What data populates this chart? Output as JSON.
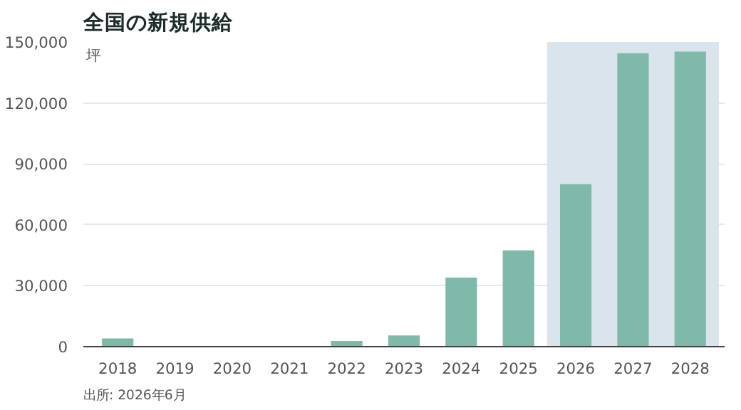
{
  "chart_data": {
    "type": "bar",
    "title": "全国の新規供給",
    "ylabel": "坪",
    "categories": [
      "2018",
      "2019",
      "2020",
      "2021",
      "2022",
      "2023",
      "2024",
      "2025",
      "2026",
      "2027",
      "2028"
    ],
    "values": [
      4000,
      0,
      0,
      0,
      2800,
      5500,
      34000,
      47400,
      80000,
      144500,
      145300
    ],
    "color": "#7fb9aa",
    "ylim": [
      0,
      150000
    ],
    "yticks": [
      0,
      {
        "value": 30000,
        "label": "30,000"
      },
      {
        "value": 60000,
        "label": "60,000"
      },
      {
        "value": 90000,
        "label": "90,000"
      },
      {
        "value": 120000,
        "label": "120,000"
      },
      {
        "value": 150000,
        "label": "150,000"
      }
    ],
    "bands": [
      {
        "axis": "x",
        "from": "2026",
        "to": "2028",
        "color": "#d9e4ed"
      }
    ],
    "grid": "y",
    "annotations": [
      "出所: 2026年6月"
    ]
  }
}
